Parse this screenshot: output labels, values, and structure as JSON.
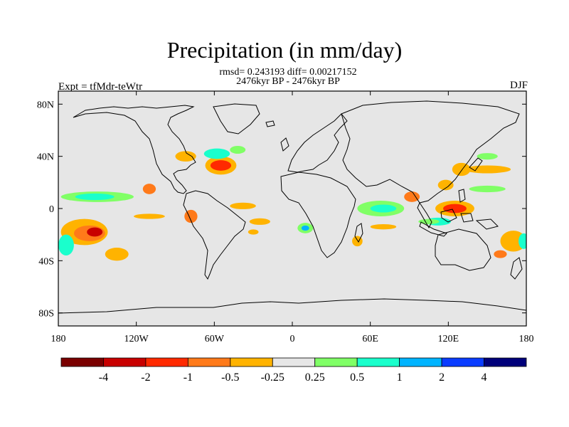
{
  "chart_data": {
    "type": "heatmap",
    "title": "Precipitation (in mm/day)",
    "stats_text": "rmsd= 0.243193 diff= 0.00217152",
    "period_text": "2476kyr BP - 2476kyr BP",
    "left_label": "Expt = tfMdr-teWtr",
    "right_label": "DJF",
    "x_range": [
      -180,
      180
    ],
    "y_range": [
      -90,
      90
    ],
    "x_ticks": [
      {
        "value": -180,
        "label": "180"
      },
      {
        "value": -120,
        "label": "120W"
      },
      {
        "value": -60,
        "label": "60W"
      },
      {
        "value": 0,
        "label": "0"
      },
      {
        "value": 60,
        "label": "60E"
      },
      {
        "value": 120,
        "label": "120E"
      },
      {
        "value": 180,
        "label": "180"
      }
    ],
    "y_ticks": [
      {
        "value": 80,
        "label": "80N"
      },
      {
        "value": 40,
        "label": "40N"
      },
      {
        "value": 0,
        "label": "0"
      },
      {
        "value": -40,
        "label": "40S"
      },
      {
        "value": -80,
        "label": "80S"
      }
    ],
    "colorbar": {
      "colors": [
        "#7a0000",
        "#c80000",
        "#ff2a00",
        "#ff7a1a",
        "#ffb300",
        "#e6e6e6",
        "#80ff66",
        "#1affcc",
        "#00b4ff",
        "#0a3cff",
        "#00007a"
      ],
      "levels": [
        "-4",
        "-2",
        "-1",
        "-0.5",
        "-0.25",
        "0.25",
        "0.5",
        "1",
        "2",
        "4"
      ]
    },
    "anomalies": [
      {
        "region": "central Pacific 15S-25S",
        "lon": -160,
        "lat": -18,
        "rx": 18,
        "ry": 10,
        "color": "#ffb300"
      },
      {
        "region": "central Pacific core",
        "lon": -156,
        "lat": -19,
        "rx": 12,
        "ry": 6,
        "color": "#ff7a1a"
      },
      {
        "region": "central Pacific max",
        "lon": -152,
        "lat": -18,
        "rx": 6,
        "ry": 3.5,
        "color": "#c80000"
      },
      {
        "region": "equatorial Pacific 5N",
        "lon": -150,
        "lat": 9,
        "rx": 28,
        "ry": 4,
        "color": "#80ff66"
      },
      {
        "region": "equatorial Pacific core",
        "lon": -152,
        "lat": 9,
        "rx": 15,
        "ry": 2.5,
        "color": "#1affcc"
      },
      {
        "region": "southwest Pacific",
        "lon": -174,
        "lat": -28,
        "rx": 6,
        "ry": 8,
        "color": "#1affcc"
      },
      {
        "region": "southeast Pacific",
        "lon": -135,
        "lat": -35,
        "rx": 9,
        "ry": 5,
        "color": "#ffb300"
      },
      {
        "region": "east Pacific ITCZ",
        "lon": -110,
        "lat": 15,
        "rx": 5,
        "ry": 4,
        "color": "#ff7a1a"
      },
      {
        "region": "south Pacific 10S",
        "lon": -110,
        "lat": -6,
        "rx": 12,
        "ry": 2,
        "color": "#ffb300"
      },
      {
        "region": "Peru coast",
        "lon": -78,
        "lat": -6,
        "rx": 5,
        "ry": 5,
        "color": "#ff7a1a"
      },
      {
        "region": "Gulf Stream",
        "lon": -55,
        "lat": 33,
        "rx": 12,
        "ry": 7,
        "color": "#ffb300"
      },
      {
        "region": "Gulf Stream core",
        "lon": -55,
        "lat": 33,
        "rx": 8,
        "ry": 4,
        "color": "#ff2a00"
      },
      {
        "region": "North Atlantic 45N",
        "lon": -58,
        "lat": 42,
        "rx": 10,
        "ry": 4,
        "color": "#1affcc"
      },
      {
        "region": "Gulf of Mexico",
        "lon": -82,
        "lat": 40,
        "rx": 8,
        "ry": 4,
        "color": "#ffb300"
      },
      {
        "region": "subtropical Atlantic",
        "lon": -42,
        "lat": 45,
        "rx": 6,
        "ry": 3,
        "color": "#80ff66"
      },
      {
        "region": "equatorial Atlantic",
        "lon": -38,
        "lat": 2,
        "rx": 10,
        "ry": 2.5,
        "color": "#ffb300"
      },
      {
        "region": "South Atlantic 20S",
        "lon": -25,
        "lat": -10,
        "rx": 8,
        "ry": 2.5,
        "color": "#ffb300"
      },
      {
        "region": "South Atlantic west",
        "lon": -30,
        "lat": -18,
        "rx": 4,
        "ry": 2,
        "color": "#ffb300"
      },
      {
        "region": "Gulf of Guinea",
        "lon": 10,
        "lat": -15,
        "rx": 6,
        "ry": 4,
        "color": "#80ff66"
      },
      {
        "region": "Angola coast",
        "lon": 10,
        "lat": -15,
        "rx": 3,
        "ry": 2,
        "color": "#00b4ff"
      },
      {
        "region": "Indian Ocean equator",
        "lon": 68,
        "lat": 0,
        "rx": 18,
        "ry": 6,
        "color": "#80ff66"
      },
      {
        "region": "Indian Ocean core",
        "lon": 70,
        "lat": 0,
        "rx": 10,
        "ry": 3,
        "color": "#1affcc"
      },
      {
        "region": "Indian Ocean 15S",
        "lon": 70,
        "lat": -14,
        "rx": 10,
        "ry": 2,
        "color": "#ffb300"
      },
      {
        "region": "Mozambique",
        "lon": 50,
        "lat": -25,
        "rx": 4,
        "ry": 4,
        "color": "#ffb300"
      },
      {
        "region": "Bay of Bengal",
        "lon": 92,
        "lat": 9,
        "rx": 6,
        "ry": 4,
        "color": "#ff7a1a"
      },
      {
        "region": "Maritime Continent",
        "lon": 125,
        "lat": 0,
        "rx": 15,
        "ry": 6,
        "color": "#ffb300"
      },
      {
        "region": "Maritime Continent core",
        "lon": 125,
        "lat": 0,
        "rx": 9,
        "ry": 3.5,
        "color": "#ff2a00"
      },
      {
        "region": "western Pacific 5S",
        "lon": 112,
        "lat": -10,
        "rx": 10,
        "ry": 3,
        "color": "#1affcc"
      },
      {
        "region": "Indonesia south",
        "lon": 105,
        "lat": -10,
        "rx": 8,
        "ry": 2,
        "color": "#80ff66"
      },
      {
        "region": "South China Sea",
        "lon": 118,
        "lat": 18,
        "rx": 6,
        "ry": 4,
        "color": "#ffb300"
      },
      {
        "region": "Japan",
        "lon": 130,
        "lat": 30,
        "rx": 7,
        "ry": 5,
        "color": "#ffb300"
      },
      {
        "region": "North Pacific 35N",
        "lon": 150,
        "lat": 30,
        "rx": 18,
        "ry": 3,
        "color": "#ffb300"
      },
      {
        "region": "North Pacific 40N",
        "lon": 150,
        "lat": 40,
        "rx": 8,
        "ry": 2.5,
        "color": "#80ff66"
      },
      {
        "region": "SW Pacific",
        "lon": 170,
        "lat": -25,
        "rx": 10,
        "ry": 8,
        "color": "#ffb300"
      },
      {
        "region": "SW Pacific blue",
        "lon": 178,
        "lat": -25,
        "rx": 4,
        "ry": 6,
        "color": "#1affcc"
      },
      {
        "region": "Australia coast",
        "lon": 160,
        "lat": -35,
        "rx": 5,
        "ry": 3,
        "color": "#ff7a1a"
      },
      {
        "region": "tropical western Pacific",
        "lon": 150,
        "lat": 15,
        "rx": 14,
        "ry": 2.5,
        "color": "#80ff66"
      }
    ]
  }
}
